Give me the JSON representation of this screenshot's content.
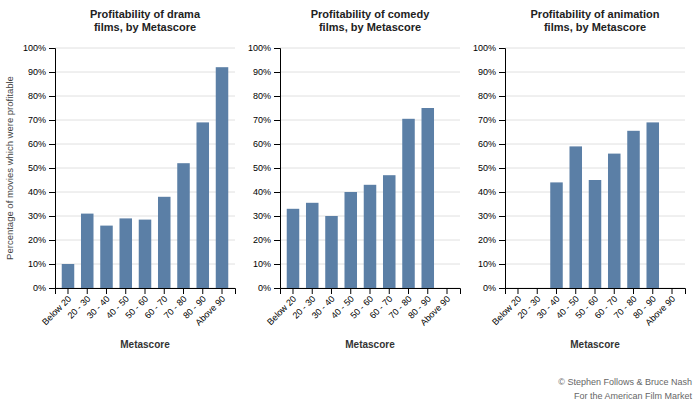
{
  "chart_data": [
    {
      "type": "bar",
      "title": "Profitability of drama\nfilms, by Metascore",
      "xlabel": "Metascore",
      "ylabel": "Percentage of movies which were profitable",
      "categories": [
        "Below 20",
        "20 - 30",
        "30 - 40",
        "40 - 50",
        "50 - 60",
        "60 - 70",
        "70 - 80",
        "80 - 90",
        "Above 90"
      ],
      "values": [
        0.1,
        0.31,
        0.26,
        0.29,
        0.285,
        0.38,
        0.52,
        0.69,
        0.92
      ],
      "color": "#5b7fa6",
      "ylim": [
        0,
        1.0
      ],
      "yticks": [
        {
          "value": 0,
          "label": "0%"
        },
        {
          "value": 0.1,
          "label": "10%"
        },
        {
          "value": 0.2,
          "label": "20%"
        },
        {
          "value": 0.3,
          "label": "30%"
        },
        {
          "value": 0.4,
          "label": "40%"
        },
        {
          "value": 0.5,
          "label": "50%"
        },
        {
          "value": 0.6,
          "label": "60%"
        },
        {
          "value": 0.7,
          "label": "70%"
        },
        {
          "value": 0.8,
          "label": "80%"
        },
        {
          "value": 0.9,
          "label": "90%"
        },
        {
          "value": 1.0,
          "label": "100%"
        }
      ],
      "grid": true
    },
    {
      "type": "bar",
      "title": "Profitability of comedy\nfilms, by Metascore",
      "xlabel": "Metascore",
      "categories": [
        "Below 20",
        "20 - 30",
        "30 - 40",
        "40 - 50",
        "50 - 60",
        "60 - 70",
        "70 - 80",
        "80 - 90",
        "Above 90"
      ],
      "values": [
        0.33,
        0.355,
        0.3,
        0.4,
        0.43,
        0.47,
        0.705,
        0.75,
        0.0
      ],
      "color": "#5b7fa6",
      "ylim": [
        0,
        1.0
      ],
      "yticks": [
        {
          "value": 0,
          "label": "0%"
        },
        {
          "value": 0.1,
          "label": "10%"
        },
        {
          "value": 0.2,
          "label": "20%"
        },
        {
          "value": 0.3,
          "label": "30%"
        },
        {
          "value": 0.4,
          "label": "40%"
        },
        {
          "value": 0.5,
          "label": "50%"
        },
        {
          "value": 0.6,
          "label": "60%"
        },
        {
          "value": 0.7,
          "label": "70%"
        },
        {
          "value": 0.8,
          "label": "80%"
        },
        {
          "value": 0.9,
          "label": "90%"
        },
        {
          "value": 1.0,
          "label": "100%"
        }
      ],
      "grid": true
    },
    {
      "type": "bar",
      "title": "Profitability of animation\nfilms, by Metascore",
      "xlabel": "Metascore",
      "categories": [
        "Below 20",
        "20 - 30",
        "30 - 40",
        "40 - 50",
        "50 - 60",
        "60 - 70",
        "70 - 80",
        "80 - 90",
        "Above 90"
      ],
      "values": [
        0.0,
        0.0,
        0.44,
        0.59,
        0.45,
        0.56,
        0.655,
        0.69,
        0.0
      ],
      "color": "#5b7fa6",
      "ylim": [
        0,
        1.0
      ],
      "yticks": [
        {
          "value": 0,
          "label": "0%"
        },
        {
          "value": 0.1,
          "label": "10%"
        },
        {
          "value": 0.2,
          "label": "20%"
        },
        {
          "value": 0.3,
          "label": "30%"
        },
        {
          "value": 0.4,
          "label": "40%"
        },
        {
          "value": 0.5,
          "label": "50%"
        },
        {
          "value": 0.6,
          "label": "60%"
        },
        {
          "value": 0.7,
          "label": "70%"
        },
        {
          "value": 0.8,
          "label": "80%"
        },
        {
          "value": 0.9,
          "label": "90%"
        },
        {
          "value": 1.0,
          "label": "100%"
        }
      ],
      "grid": true,
      "annotations": [
        "© Stephen Follows & Bruce Nash\nFor the American Film Market"
      ]
    }
  ]
}
